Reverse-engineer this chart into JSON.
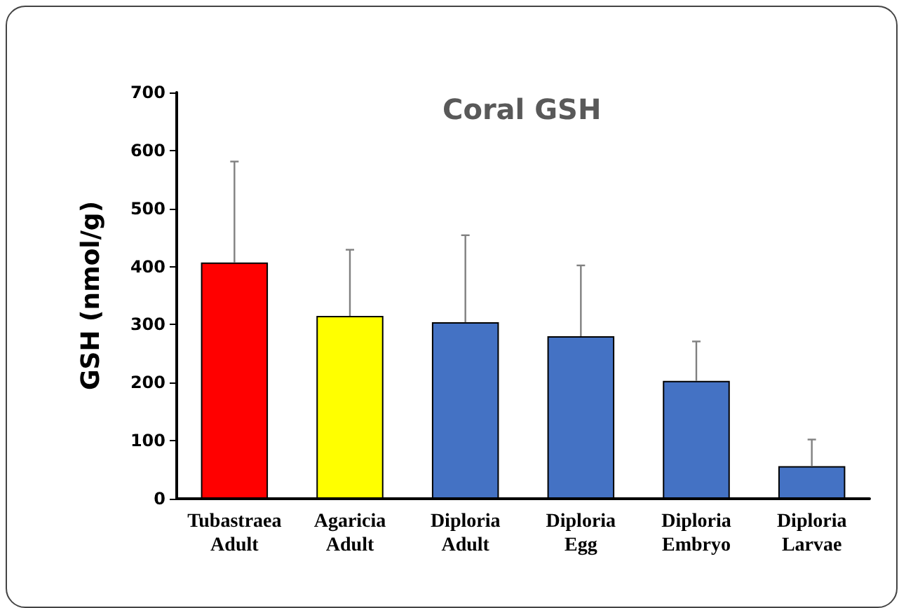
{
  "chart_data": {
    "type": "bar",
    "title": "Coral GSH",
    "ylabel": "GSH (nmol/g)",
    "categories": [
      "Tubastraea\nAdult",
      "Agaricia\nAdult",
      "Diploria\nAdult",
      "Diploria\nEgg",
      "Diploria\nEmbryo",
      "Diploria\nLarvae"
    ],
    "values": [
      407,
      315,
      304,
      280,
      203,
      56
    ],
    "colors": [
      "#ff0000",
      "#ffff00",
      "#4472c4",
      "#4472c4",
      "#4472c4",
      "#4472c4"
    ],
    "errors": [
      [
        407,
        581
      ],
      [
        315,
        429
      ],
      [
        304,
        454
      ],
      [
        280,
        402
      ],
      [
        203,
        271
      ],
      [
        56,
        102
      ]
    ],
    "ylim": [
      0,
      700
    ],
    "yticks": [
      0,
      100,
      200,
      300,
      400,
      500,
      600,
      700
    ],
    "grid": false
  }
}
